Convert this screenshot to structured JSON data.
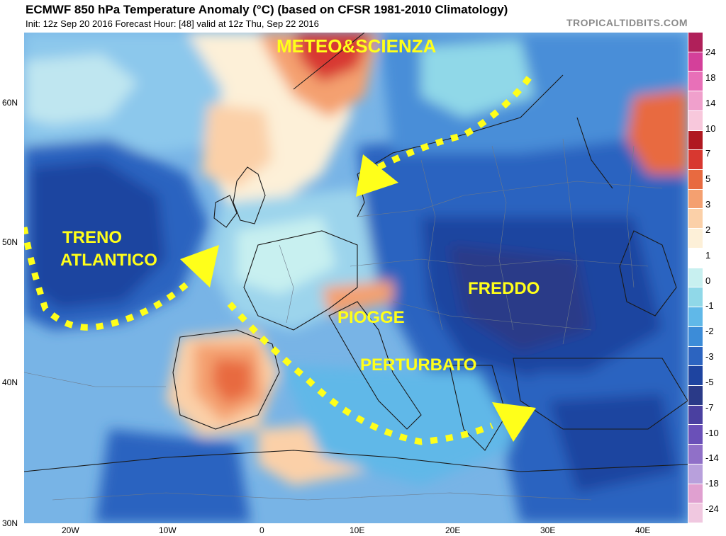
{
  "header": {
    "title": "ECMWF 850 hPa Temperature Anomaly (°C) (based on CFSR 1981-2010 Climatology)",
    "subtitle": "Init: 12z Sep 20 2016   Forecast Hour: [48]   valid at 12z Thu, Sep 22 2016",
    "brand": "TROPICALTIDBITS.COM"
  },
  "axes": {
    "lat_labels": [
      "60N",
      "50N",
      "40N",
      "30N"
    ],
    "lon_labels": [
      "20W",
      "10W",
      "0",
      "10E",
      "20E",
      "30E",
      "40E"
    ]
  },
  "colorbar": {
    "labels": [
      "24",
      "18",
      "14",
      "10",
      "7",
      "5",
      "3",
      "2",
      "1",
      "0",
      "-1",
      "-2",
      "-3",
      "-5",
      "-7",
      "-10",
      "-14",
      "-18",
      "-24"
    ],
    "colors": [
      "#b0205a",
      "#d4409a",
      "#e870b8",
      "#f0a0cc",
      "#f8c8dc",
      "#b01820",
      "#d83830",
      "#e86a40",
      "#f4a070",
      "#fbd0a8",
      "#fdf0d8",
      "#ffffff",
      "#c8f0f0",
      "#90d8e8",
      "#60b8e8",
      "#3c8cd8",
      "#2c64c0",
      "#1e44a0",
      "#2a3a88",
      "#4a40a0",
      "#6a50b8",
      "#9070c8",
      "#b8a0dc",
      "#e0a0d0",
      "#f0c8e0"
    ]
  },
  "annotations": {
    "watermark": "METEO&SCIENZA",
    "treno_line1": "TRENO",
    "treno_line2": "ATLANTICO",
    "freddo": "FREDDO",
    "piogge": "PIOGGE",
    "perturbato": "PERTURBATO"
  }
}
